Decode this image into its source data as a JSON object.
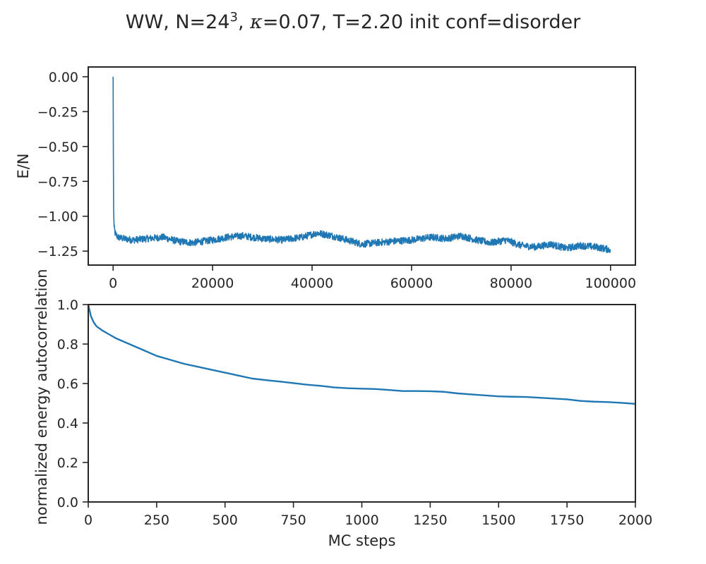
{
  "figure": {
    "title_prefix": "WW, N=24",
    "title_exponent": "3",
    "title_kappa_symbol": "κ",
    "title_suffix": "=0.07, T=2.20 init conf=disorder"
  },
  "chart_data": [
    {
      "type": "line",
      "xlabel": "",
      "ylabel": "E/N",
      "xlim": [
        -5000,
        105000
      ],
      "ylim": [
        -1.35,
        0.07
      ],
      "xticks": [
        0,
        20000,
        40000,
        60000,
        80000,
        100000
      ],
      "yticks": [
        0.0,
        -0.25,
        -0.5,
        -0.75,
        -1.0,
        -1.25
      ],
      "xtick_labels": [
        "0",
        "20000",
        "40000",
        "60000",
        "80000",
        "100000"
      ],
      "ytick_labels": [
        "0.00",
        "−0.25",
        "−0.50",
        "−0.75",
        "−1.00",
        "−1.25"
      ],
      "grid": false,
      "color": "#1f77b4",
      "series": [
        {
          "x": [
            0,
            50,
            100,
            200,
            400,
            700,
            1000,
            2000,
            4000,
            7000,
            10000,
            13000,
            16000,
            18000,
            20000,
            23000,
            26000,
            30000,
            34000,
            38000,
            41000,
            44000,
            47000,
            50000,
            53000,
            56000,
            60000,
            64000,
            67000,
            70000,
            73000,
            76000,
            79000,
            82000,
            85000,
            88000,
            91000,
            94000,
            97000,
            100000
          ],
          "y": [
            0.0,
            -0.55,
            -0.95,
            -1.08,
            -1.12,
            -1.14,
            -1.15,
            -1.16,
            -1.17,
            -1.16,
            -1.15,
            -1.18,
            -1.19,
            -1.18,
            -1.17,
            -1.15,
            -1.14,
            -1.16,
            -1.17,
            -1.15,
            -1.12,
            -1.14,
            -1.17,
            -1.2,
            -1.19,
            -1.18,
            -1.17,
            -1.15,
            -1.16,
            -1.14,
            -1.17,
            -1.19,
            -1.17,
            -1.21,
            -1.22,
            -1.2,
            -1.23,
            -1.21,
            -1.22,
            -1.24
          ],
          "noise": 0.025
        }
      ]
    },
    {
      "type": "line",
      "xlabel": "MC steps",
      "ylabel": "normalized energy autocorrelation",
      "xlim": [
        0,
        2000
      ],
      "ylim": [
        0.0,
        1.0
      ],
      "xticks": [
        0,
        250,
        500,
        750,
        1000,
        1250,
        1500,
        1750,
        2000
      ],
      "yticks": [
        0.0,
        0.2,
        0.4,
        0.6,
        0.8,
        1.0
      ],
      "xtick_labels": [
        "0",
        "250",
        "500",
        "750",
        "1000",
        "1250",
        "1500",
        "1750",
        "2000"
      ],
      "ytick_labels": [
        "0.0",
        "0.2",
        "0.4",
        "0.6",
        "0.8",
        "1.0"
      ],
      "grid": false,
      "color": "#1f77b4",
      "series": [
        {
          "x": [
            0,
            5,
            10,
            20,
            30,
            50,
            75,
            100,
            150,
            200,
            250,
            300,
            350,
            400,
            450,
            500,
            550,
            600,
            650,
            700,
            750,
            800,
            850,
            900,
            950,
            1000,
            1050,
            1100,
            1150,
            1200,
            1250,
            1300,
            1350,
            1400,
            1450,
            1500,
            1550,
            1600,
            1650,
            1700,
            1750,
            1800,
            1850,
            1900,
            1950,
            2000
          ],
          "y": [
            1.0,
            0.97,
            0.94,
            0.91,
            0.89,
            0.87,
            0.85,
            0.83,
            0.8,
            0.77,
            0.74,
            0.72,
            0.7,
            0.685,
            0.67,
            0.655,
            0.64,
            0.625,
            0.617,
            0.61,
            0.602,
            0.594,
            0.588,
            0.58,
            0.576,
            0.574,
            0.572,
            0.567,
            0.562,
            0.562,
            0.561,
            0.558,
            0.55,
            0.545,
            0.54,
            0.535,
            0.533,
            0.532,
            0.528,
            0.524,
            0.52,
            0.512,
            0.508,
            0.506,
            0.502,
            0.497
          ]
        }
      ]
    }
  ]
}
